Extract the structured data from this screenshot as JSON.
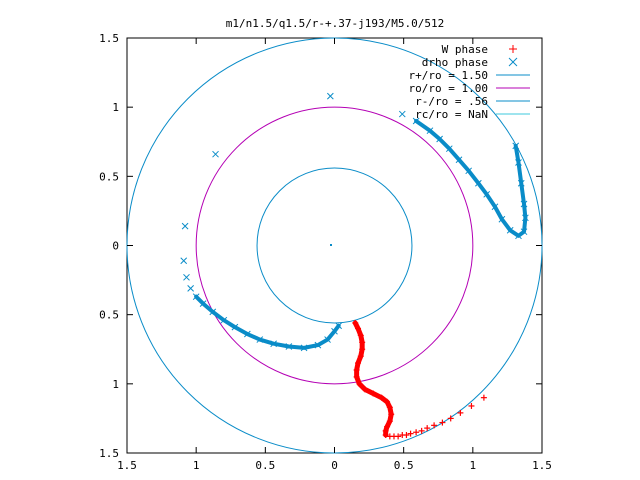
{
  "chart_data": {
    "type": "scatter",
    "title": "m1/n1.5/q1.5/r-+.37-j193/M5.0/512",
    "xlabel": "",
    "ylabel": "",
    "xlim": [
      -1.5,
      1.5
    ],
    "ylim": [
      -1.5,
      1.5
    ],
    "x_ticks": [
      "1.5",
      "1",
      "0.5",
      "0",
      "0.5",
      "1",
      "1.5"
    ],
    "y_ticks": [
      "1.5",
      "1",
      "0.5",
      "0",
      "0.5",
      "1",
      "1.5"
    ],
    "grid": false,
    "legend_position": "top-right",
    "circles": [
      {
        "name": "r+/ro = 1.50",
        "radius": 1.5,
        "color": "#0a8cc8"
      },
      {
        "name": "ro/ro = 1.00",
        "radius": 1.0,
        "color": "#b400b4"
      },
      {
        "name": "r-/ro = .56",
        "radius": 0.56,
        "color": "#0a8cc8"
      },
      {
        "name": "rc/ro = NaN",
        "radius": null,
        "color": "#3cc8dc"
      }
    ],
    "series": [
      {
        "name": "W phase",
        "marker": "plus",
        "color": "#ff0000",
        "points": [
          [
            0.15,
            -0.56
          ],
          [
            0.17,
            -0.6
          ],
          [
            0.19,
            -0.65
          ],
          [
            0.2,
            -0.7
          ],
          [
            0.2,
            -0.75
          ],
          [
            0.19,
            -0.8
          ],
          [
            0.17,
            -0.85
          ],
          [
            0.16,
            -0.9
          ],
          [
            0.16,
            -0.95
          ],
          [
            0.18,
            -1.0
          ],
          [
            0.22,
            -1.04
          ],
          [
            0.28,
            -1.07
          ],
          [
            0.34,
            -1.1
          ],
          [
            0.38,
            -1.13
          ],
          [
            0.4,
            -1.17
          ],
          [
            0.41,
            -1.22
          ],
          [
            0.4,
            -1.27
          ],
          [
            0.38,
            -1.31
          ],
          [
            0.37,
            -1.34
          ],
          [
            0.37,
            -1.37
          ],
          [
            0.4,
            -1.38
          ],
          [
            0.43,
            -1.38
          ],
          [
            0.46,
            -1.38
          ],
          [
            0.49,
            -1.37
          ],
          [
            0.52,
            -1.37
          ],
          [
            0.55,
            -1.36
          ],
          [
            0.59,
            -1.35
          ],
          [
            0.63,
            -1.34
          ],
          [
            0.67,
            -1.32
          ],
          [
            0.72,
            -1.3
          ],
          [
            0.78,
            -1.28
          ],
          [
            0.84,
            -1.25
          ],
          [
            0.91,
            -1.21
          ],
          [
            0.99,
            -1.16
          ],
          [
            1.08,
            -1.1
          ]
        ]
      },
      {
        "name": "drho phase",
        "marker": "cross",
        "color": "#0a8cc8",
        "points": [
          [
            -0.03,
            1.08
          ],
          [
            -0.86,
            0.66
          ],
          [
            -1.08,
            0.14
          ],
          [
            -1.09,
            -0.11
          ],
          [
            -1.07,
            -0.23
          ],
          [
            -1.04,
            -0.31
          ],
          [
            -1.0,
            -0.37
          ],
          [
            -0.95,
            -0.42
          ],
          [
            -0.88,
            -0.48
          ],
          [
            -0.8,
            -0.54
          ],
          [
            -0.72,
            -0.59
          ],
          [
            -0.63,
            -0.64
          ],
          [
            -0.54,
            -0.68
          ],
          [
            -0.44,
            -0.71
          ],
          [
            -0.33,
            -0.73
          ],
          [
            -0.22,
            -0.74
          ],
          [
            -0.12,
            -0.72
          ],
          [
            -0.05,
            -0.68
          ],
          [
            0.0,
            -0.62
          ],
          [
            0.03,
            -0.58
          ],
          [
            0.49,
            0.95
          ],
          [
            0.59,
            0.9
          ],
          [
            0.69,
            0.83
          ],
          [
            0.76,
            0.77
          ],
          [
            0.83,
            0.7
          ],
          [
            0.9,
            0.62
          ],
          [
            0.97,
            0.54
          ],
          [
            1.04,
            0.45
          ],
          [
            1.1,
            0.37
          ],
          [
            1.16,
            0.28
          ],
          [
            1.21,
            0.19
          ],
          [
            1.27,
            0.11
          ],
          [
            1.33,
            0.07
          ],
          [
            1.37,
            0.1
          ],
          [
            1.38,
            0.2
          ],
          [
            1.37,
            0.3
          ],
          [
            1.35,
            0.45
          ],
          [
            1.33,
            0.6
          ],
          [
            1.31,
            0.72
          ]
        ]
      }
    ]
  }
}
